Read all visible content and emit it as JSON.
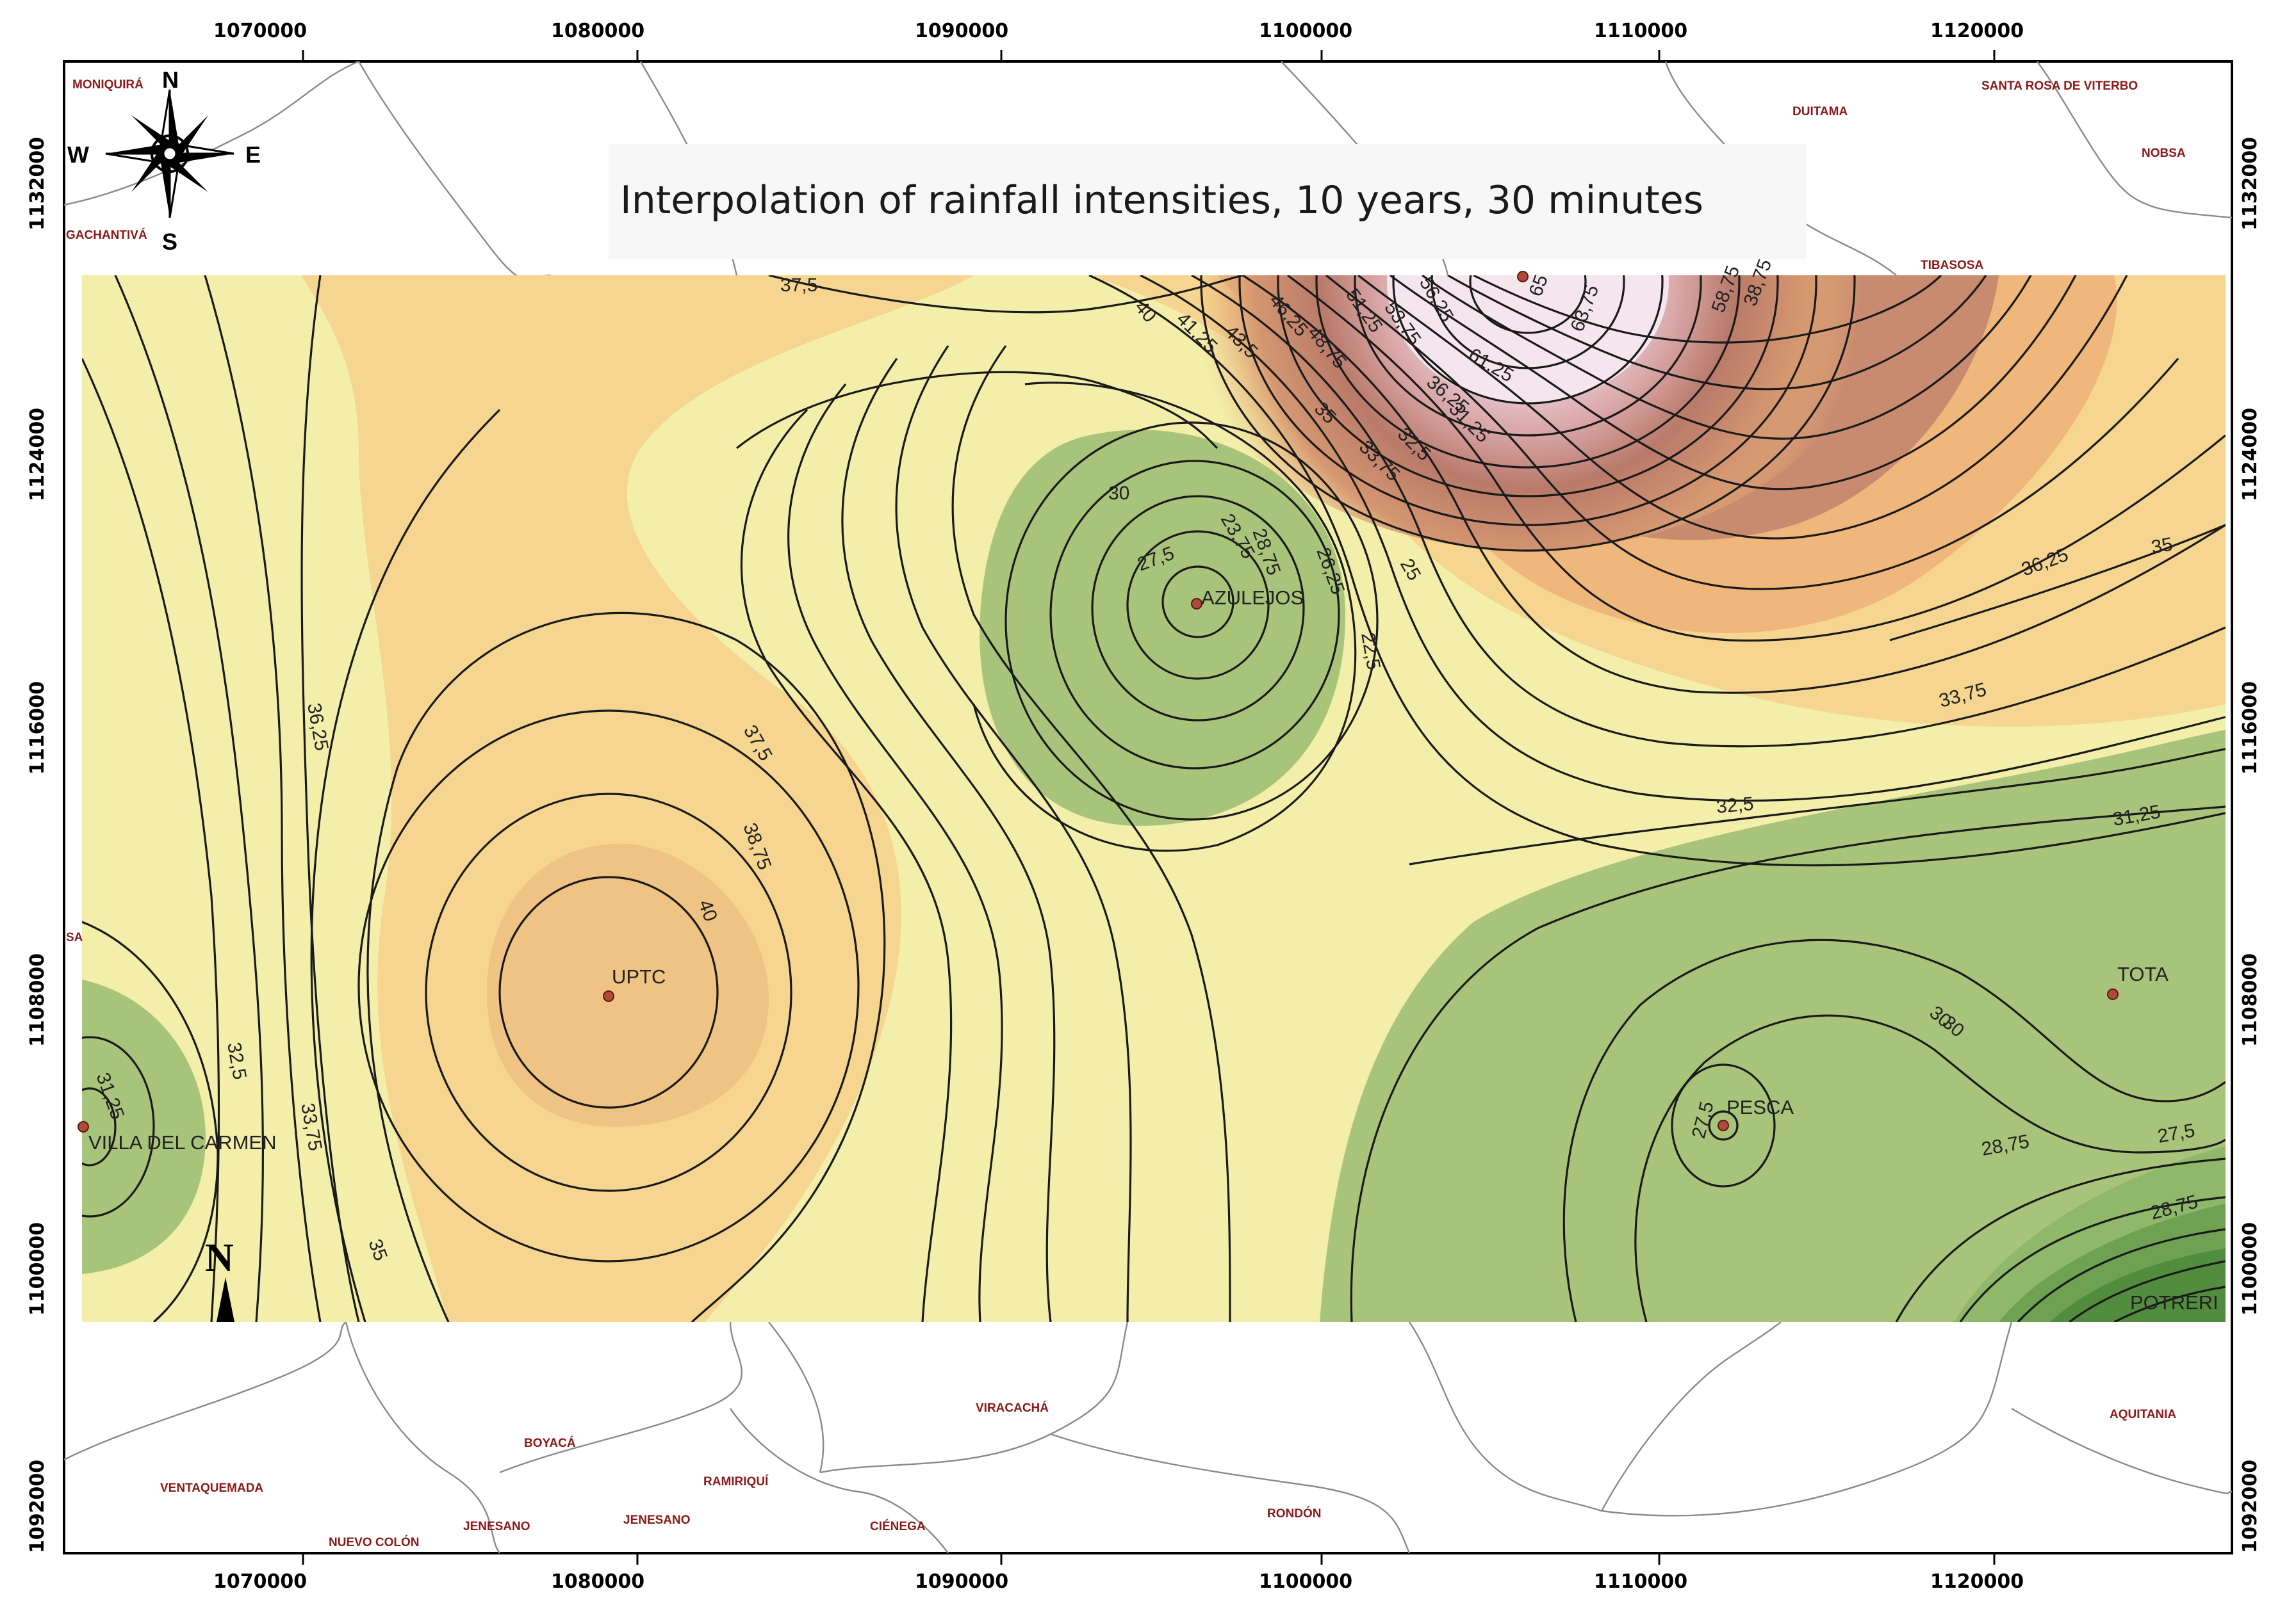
{
  "title": "Interpolation of rainfall intensities, 10 years, 30 minutes",
  "x_ticks": [
    "1070000",
    "1080000",
    "1090000",
    "1100000",
    "1110000",
    "1120000"
  ],
  "y_ticks": [
    "1132000",
    "1124000",
    "1116000",
    "1108000",
    "1100000",
    "1092000"
  ],
  "compass": {
    "n": "N",
    "s": "S",
    "e": "E",
    "w": "W"
  },
  "north_arrow_letter": "N",
  "municipalities": [
    "MONIQUIRÁ",
    "GACHANTIVÁ",
    "DUITAMA",
    "SANTA ROSA DE VITERBO",
    "NOBSA",
    "TIBASOSA",
    "VENTAQUEMADA",
    "NUEVO COLÓN",
    "JENESANO",
    "JENESANO",
    "BOYACÁ",
    "RAMIRIQUÍ",
    "CIÉNEGA",
    "VIRACACHÁ",
    "RONDÓN",
    "AQUITANIA",
    "SA"
  ],
  "stations": [
    "UPTC",
    "AZULEJOS",
    "VILLA DEL CARMEN",
    "PESCA",
    "TOTA",
    "POTRERI"
  ],
  "contour_labels": [
    "37,5",
    "40",
    "41,25",
    "43,5",
    "46,25",
    "48,75",
    "51,25",
    "53,75",
    "56,25",
    "58,75",
    "61,25",
    "63,75",
    "65",
    "38,75",
    "36,25",
    "35",
    "33,75",
    "32,5",
    "31,25",
    "30",
    "28,75",
    "27,5",
    "26,25",
    "25",
    "23,75",
    "22,5",
    "36,25",
    "37,5",
    "38,75",
    "40",
    "31,25",
    "32,5",
    "33,75",
    "35",
    "30",
    "28,75",
    "27,5",
    "35",
    "36,25",
    "33,75",
    "32,5",
    "31,25",
    "30",
    "28,75",
    "27,5"
  ],
  "colors": {
    "pale_yellow": "#f3eeaa",
    "light_orange": "#f5d58f",
    "orange": "#efb77b",
    "brown": "#b97a6a",
    "pink": "#f1dbe6",
    "light_green": "#a8c47a",
    "mid_green": "#8bb364",
    "dark_green": "#5e9748"
  }
}
